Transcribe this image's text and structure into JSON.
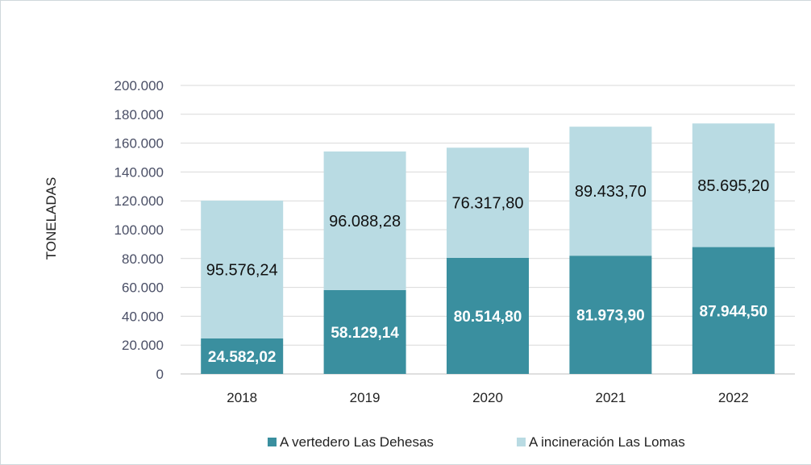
{
  "chart_data": {
    "type": "bar",
    "stacked": true,
    "categories": [
      "2018",
      "2019",
      "2020",
      "2021",
      "2022"
    ],
    "series": [
      {
        "name": "A vertedero Las Dehesas",
        "values": [
          24582.02,
          58129.14,
          80514.8,
          81973.9,
          87944.5
        ],
        "labels": [
          "24.582,02",
          "58.129,14",
          "80.514,80",
          "81.973,90",
          "87.944,50"
        ],
        "color": "#3a8f9f"
      },
      {
        "name": "A incineración Las Lomas",
        "values": [
          95576.24,
          96088.28,
          76317.8,
          89433.7,
          85695.2
        ],
        "labels": [
          "95.576,24",
          "96.088,28",
          "76.317,80",
          "89.433,70",
          "85.695,20"
        ],
        "color": "#b9dbe3"
      }
    ],
    "title": "",
    "xlabel": "",
    "ylabel": "TONELADAS",
    "ylim": [
      0,
      200000
    ],
    "yticks": [
      0,
      20000,
      40000,
      60000,
      80000,
      100000,
      120000,
      140000,
      160000,
      180000,
      200000
    ],
    "ytick_labels": [
      "0",
      "20.000",
      "40.000",
      "60.000",
      "80.000",
      "100.000",
      "120.000",
      "140.000",
      "160.000",
      "180.000",
      "200.000"
    ],
    "grid": true,
    "legend_position": "bottom"
  }
}
